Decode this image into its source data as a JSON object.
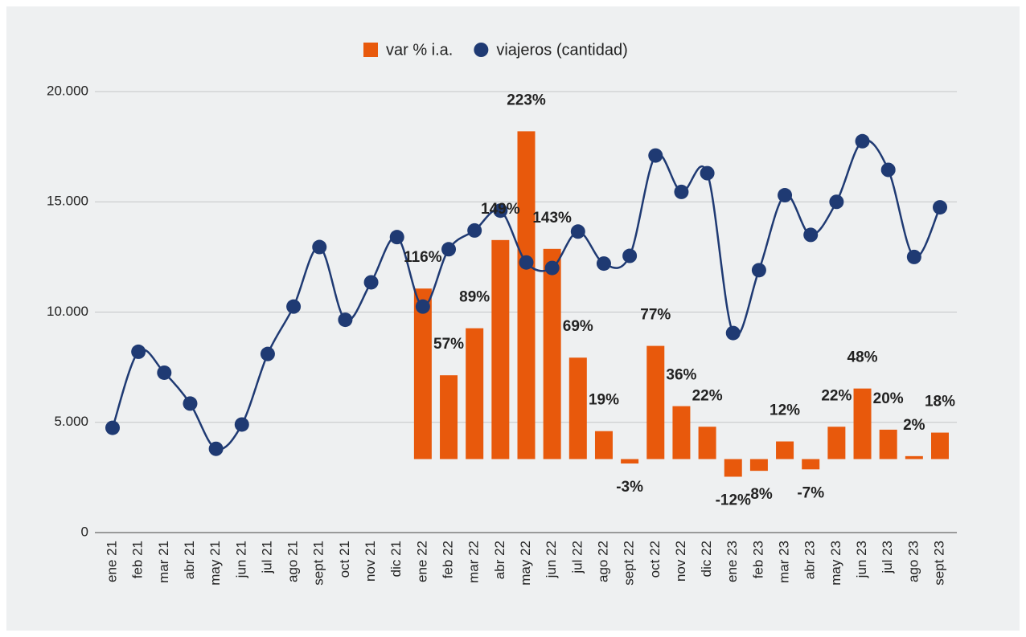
{
  "chart_data": {
    "type": "combo",
    "categories": [
      "ene 21",
      "feb 21",
      "mar 21",
      "abr 21",
      "may 21",
      "jun 21",
      "jul 21",
      "ago 21",
      "sept 21",
      "oct 21",
      "nov 21",
      "dic 21",
      "ene 22",
      "feb 22",
      "mar 22",
      "abr 22",
      "may 22",
      "jun 22",
      "jul 22",
      "ago 22",
      "sept 22",
      "oct 22",
      "nov 22",
      "dic 22",
      "ene 23",
      "feb 23",
      "mar 23",
      "abr 23",
      "may 23",
      "jun 23",
      "jul 23",
      "ago 23",
      "sept 23"
    ],
    "series": [
      {
        "name": "var % i.a.",
        "type": "bar",
        "axis": "y2",
        "color": "#e8590c",
        "values": [
          null,
          null,
          null,
          null,
          null,
          null,
          null,
          null,
          null,
          null,
          null,
          null,
          116,
          57,
          89,
          149,
          223,
          143,
          69,
          19,
          -3,
          77,
          36,
          22,
          -12,
          -8,
          12,
          -7,
          22,
          48,
          20,
          2,
          18
        ],
        "value_labels": [
          null,
          null,
          null,
          null,
          null,
          null,
          null,
          null,
          null,
          null,
          null,
          null,
          "116%",
          "57%",
          "89%",
          "149%",
          "223%",
          "143%",
          "69%",
          "19%",
          "-3%",
          "77%",
          "36%",
          "22%",
          "-12%",
          "-8%",
          "12%",
          "-7%",
          "22%",
          "48%",
          "20%",
          "2%",
          "18%"
        ]
      },
      {
        "name": "viajeros (cantidad)",
        "type": "line",
        "color": "#1f3a73",
        "values": [
          4750,
          8200,
          7250,
          5850,
          3800,
          4900,
          8100,
          10250,
          12950,
          9650,
          11350,
          13400,
          10250,
          12850,
          13700,
          14600,
          12250,
          12000,
          13650,
          12200,
          12550,
          17100,
          15450,
          16300,
          9050,
          11900,
          15300,
          13500,
          15000,
          17750,
          16450,
          12500,
          14750
        ]
      }
    ],
    "ylim": [
      0,
      20000
    ],
    "yticks": [
      0,
      {
        "value": 5000,
        "label": "5.000"
      },
      {
        "value": 10000,
        "label": "10.000"
      },
      {
        "value": 15000,
        "label": "15.000"
      },
      {
        "value": 20000,
        "label": "20.000"
      }
    ],
    "y2lim": [
      -50,
      250
    ],
    "grid": true,
    "legend": "top"
  }
}
